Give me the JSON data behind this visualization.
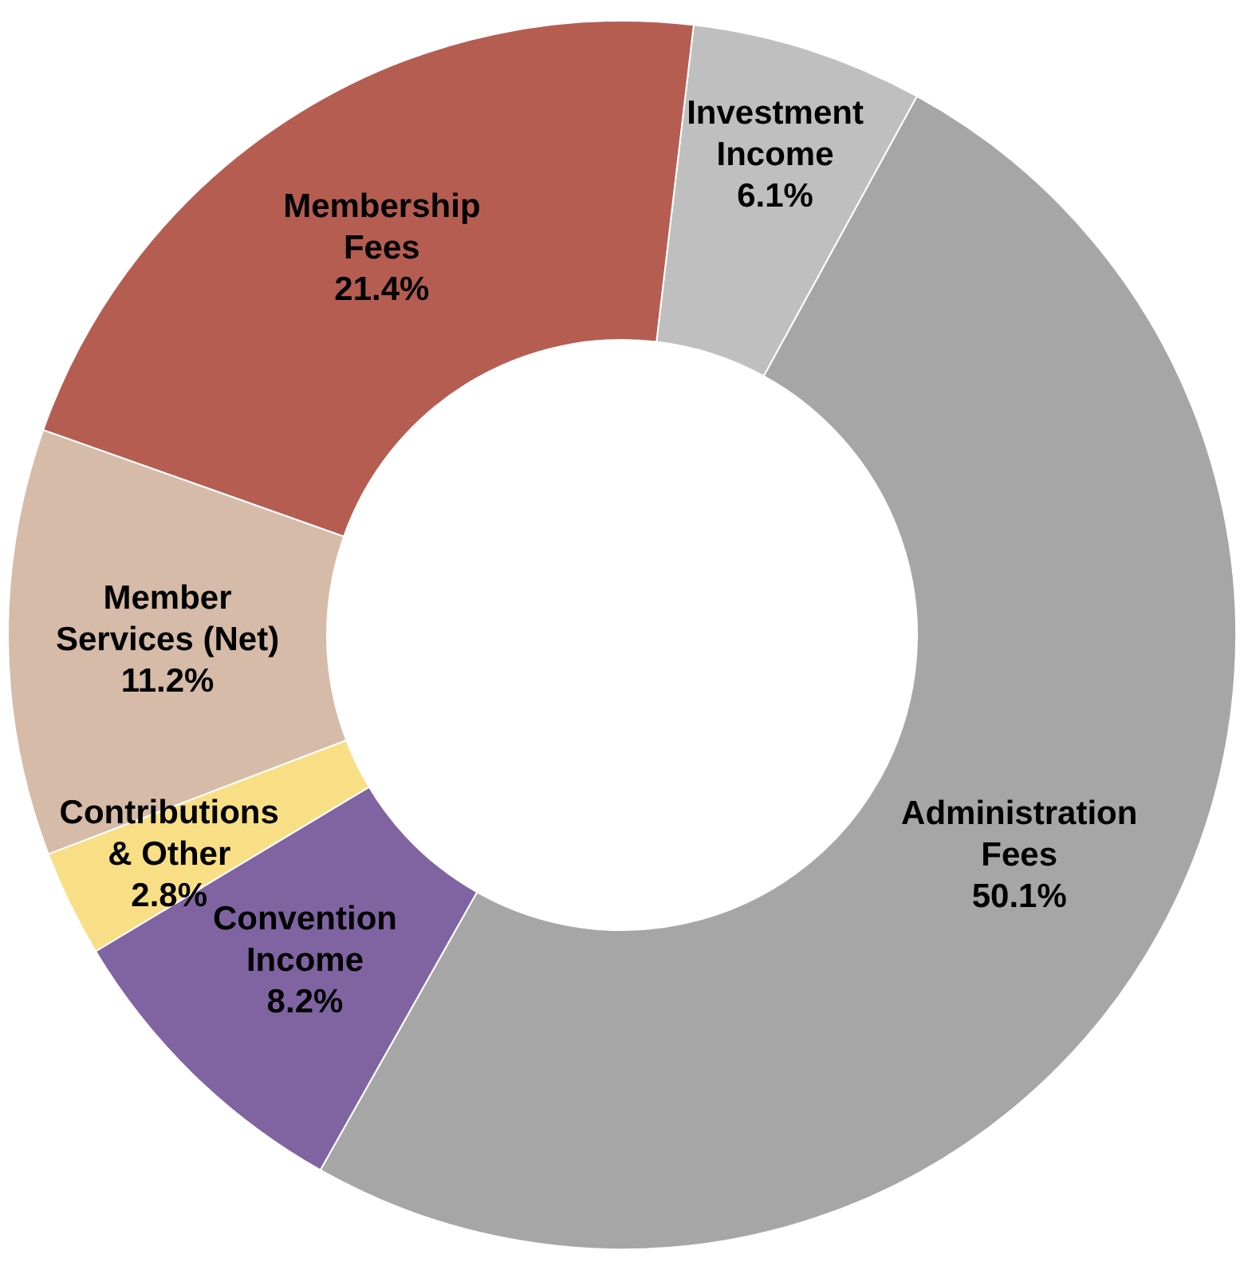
{
  "chart_data": {
    "type": "donut",
    "categories": [
      "Investment Income",
      "Administration Fees",
      "Convention Income",
      "Contributions & Other",
      "Member Services (Net)",
      "Membership Fees"
    ],
    "values": [
      6.1,
      50.1,
      8.2,
      2.8,
      11.2,
      21.4
    ],
    "value_labels": [
      "6.1%",
      "50.1%",
      "8.2%",
      "2.8%",
      "11.2%",
      "21.4%"
    ],
    "colors": [
      "#bfbfbf",
      "#a6a6a6",
      "#8064a2",
      "#f8df86",
      "#d5bba8",
      "#b55d51"
    ]
  }
}
